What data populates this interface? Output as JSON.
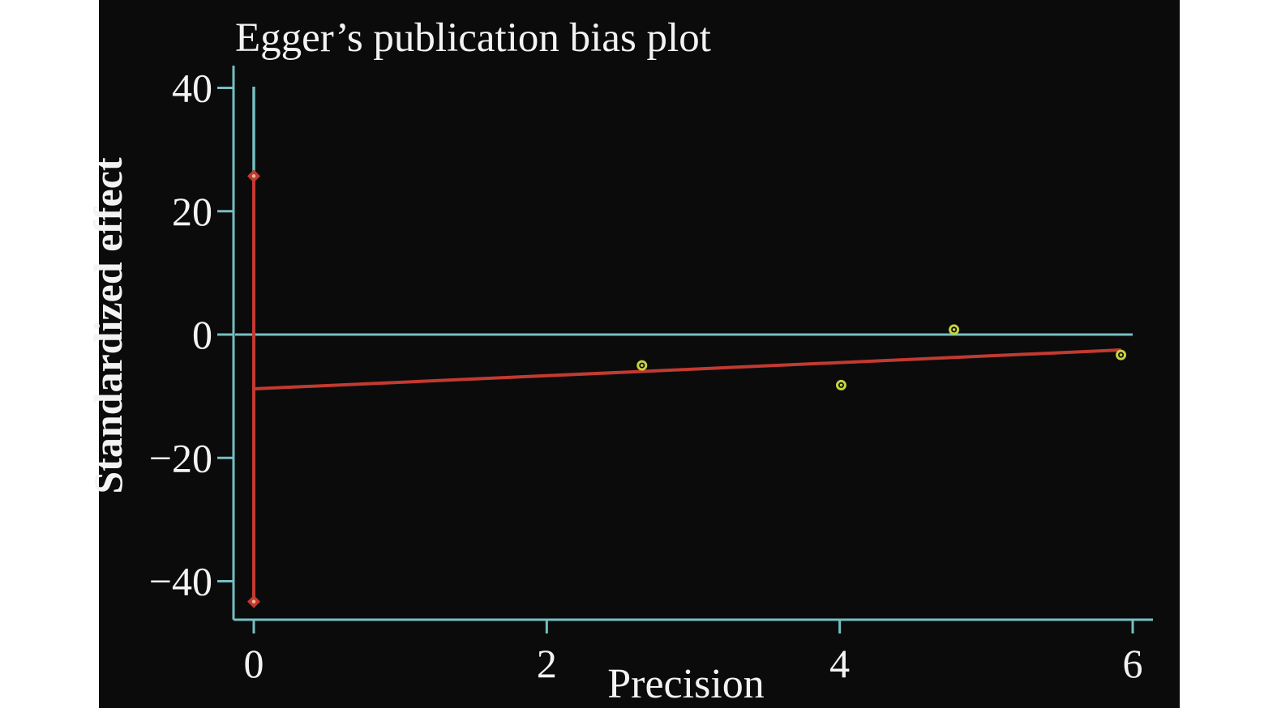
{
  "chart_data": {
    "type": "scatter",
    "title": "Egger’s publication bias plot",
    "xlabel": "Precision",
    "ylabel": "Standardized effect",
    "xlim": [
      0,
      6.14
    ],
    "ylim": [
      -46.2,
      43.6
    ],
    "x_ticks": [
      0,
      2,
      4,
      6
    ],
    "y_ticks": [
      40,
      20,
      0,
      -20,
      -40
    ],
    "grid": false,
    "legend": false,
    "series": [
      {
        "name": "studies",
        "type": "scatter",
        "marker": "open-circle-with-dot",
        "color": "#c6d23e",
        "points": [
          {
            "x": 2.65,
            "y": -5.0
          },
          {
            "x": 4.01,
            "y": -8.2
          },
          {
            "x": 4.78,
            "y": 0.8
          },
          {
            "x": 5.92,
            "y": -3.3
          }
        ]
      },
      {
        "name": "egger-regression-line",
        "type": "line",
        "color": "#c33a31",
        "points": [
          {
            "x": 0,
            "y": -8.8
          },
          {
            "x": 5.92,
            "y": -2.5
          }
        ]
      },
      {
        "name": "intercept-confidence-interval",
        "type": "vertical-interval",
        "x": 0,
        "red_segment": {
          "y1": 25.7,
          "y2": -43.3
        },
        "cyan_segment": {
          "y1": 40.2,
          "y2": 25.7
        },
        "endpoint_marker": "diamond",
        "marker_color": "#c33a31",
        "marker_center_color": "#eabd93"
      },
      {
        "name": "zero-reference-line",
        "type": "hline",
        "y": 0,
        "color": "#76bfc1"
      }
    ],
    "colors": {
      "page_background": "#ffffff",
      "plot_background": "#0b0b0b",
      "axis": "#76bfc1",
      "text": "#f3f3f3",
      "accent_red": "#c33a31",
      "accent_yellow": "#c6d23e"
    }
  }
}
